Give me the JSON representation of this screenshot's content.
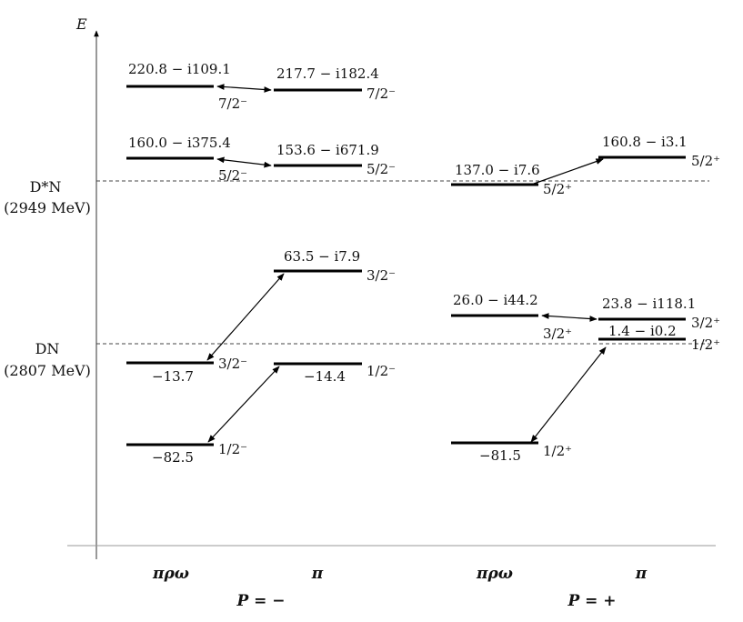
{
  "axis": {
    "label": "E"
  },
  "thresholds": [
    {
      "name_line1": "D*N",
      "name_line2": "(2949 MeV)"
    },
    {
      "name_line1": "DN",
      "name_line2": "(2807 MeV)"
    }
  ],
  "levels": [
    {
      "id": "pm-prw-72",
      "value": "220.8 − i109.1",
      "jp": "7/2⁻"
    },
    {
      "id": "pm-pi-72",
      "value": "217.7 − i182.4",
      "jp": "7/2⁻"
    },
    {
      "id": "pm-prw-52",
      "value": "160.0 − i375.4",
      "jp": "5/2⁻"
    },
    {
      "id": "pm-pi-52",
      "value": "153.6 − i671.9",
      "jp": "5/2⁻"
    },
    {
      "id": "pm-pi-32",
      "value": "63.5 − i7.9",
      "jp": "3/2⁻"
    },
    {
      "id": "pm-prw-32",
      "value": "−13.7",
      "jp": "3/2⁻"
    },
    {
      "id": "pm-pi-12",
      "value": "−14.4",
      "jp": "1/2⁻"
    },
    {
      "id": "pm-prw-12",
      "value": "−82.5",
      "jp": "1/2⁻"
    },
    {
      "id": "pp-prw-52",
      "value": "137.0 − i7.6",
      "jp": "5/2⁺"
    },
    {
      "id": "pp-pi-52",
      "value": "160.8 − i3.1",
      "jp": "5/2⁺"
    },
    {
      "id": "pp-prw-32",
      "value": "26.0 − i44.2",
      "jp": "3/2⁺"
    },
    {
      "id": "pp-pi-32",
      "value": "23.8 − i118.1",
      "jp": "3/2⁺"
    },
    {
      "id": "pp-pi-12",
      "value": "1.4 − i0.2",
      "jp": "1/2⁺"
    },
    {
      "id": "pp-prw-12",
      "value": "−81.5",
      "jp": "1/2⁺"
    }
  ],
  "columns": [
    {
      "label": "πρω"
    },
    {
      "label": "π"
    },
    {
      "label": "πρω"
    },
    {
      "label": "π"
    }
  ],
  "parity_groups": [
    {
      "label": "P = −"
    },
    {
      "label": "P = +"
    }
  ]
}
